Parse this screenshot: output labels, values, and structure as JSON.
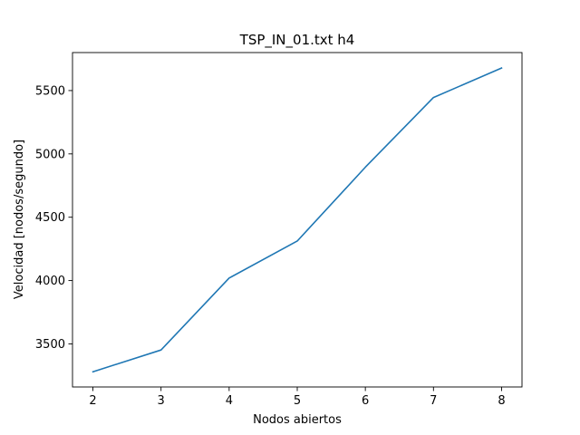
{
  "chart_data": {
    "type": "line",
    "title": "TSP_IN_01.txt h4",
    "xlabel": "Nodos abiertos",
    "ylabel": "Velocidad [nodos/segundo]",
    "x": [
      2,
      3,
      4,
      5,
      6,
      7,
      8
    ],
    "series": [
      {
        "values": [
          3280,
          3452,
          4020,
          4312,
          4895,
          5445,
          5678
        ],
        "color": "#1f77b4"
      }
    ],
    "xticks": [
      2,
      3,
      4,
      5,
      6,
      7,
      8
    ],
    "yticks": [
      3500,
      4000,
      4500,
      5000,
      5500
    ],
    "xticklabels": [
      "2",
      "3",
      "4",
      "5",
      "6",
      "7",
      "8"
    ],
    "yticklabels": [
      "3500",
      "4000",
      "4500",
      "5000",
      "5500"
    ],
    "xlim": [
      1.7,
      8.3
    ],
    "ylim": [
      3160,
      5800
    ],
    "grid": false,
    "legend": "none"
  }
}
